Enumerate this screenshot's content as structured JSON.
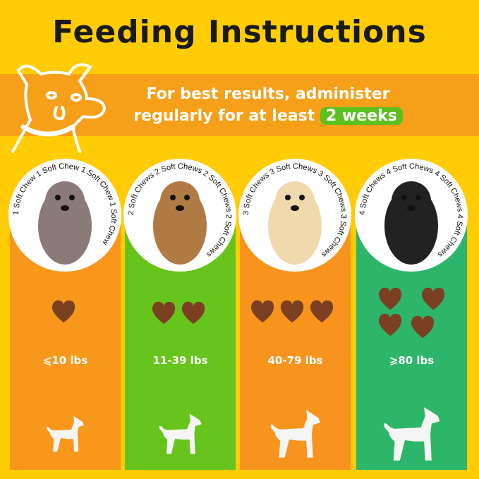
{
  "title": "Feeding Instructions",
  "banner": {
    "line1": "For best results, administer",
    "line2": "regularly for at least",
    "highlight": "2 weeks"
  },
  "colors": {
    "background": "#FFCC05",
    "band": "#F6A019",
    "highlight": "#5DC01F"
  },
  "columns": [
    {
      "ring_text": "1 Soft Chew",
      "chews": 1,
      "weight": "⩽10 lbs",
      "color": "#F7981D",
      "dog": "chihuahua"
    },
    {
      "ring_text": "2 Soft Chews",
      "chews": 2,
      "weight": "11-39 lbs",
      "color": "#66C41C",
      "dog": "french-bulldog"
    },
    {
      "ring_text": "3 Soft Chews",
      "chews": 3,
      "weight": "40-79 lbs",
      "color": "#F7941D",
      "dog": "golden-retriever-puppy"
    },
    {
      "ring_text": "4 Soft Chews",
      "chews": 4,
      "weight": "⩾80 lbs",
      "color": "#2DB56A",
      "dog": "bernese-mountain-dog"
    }
  ]
}
